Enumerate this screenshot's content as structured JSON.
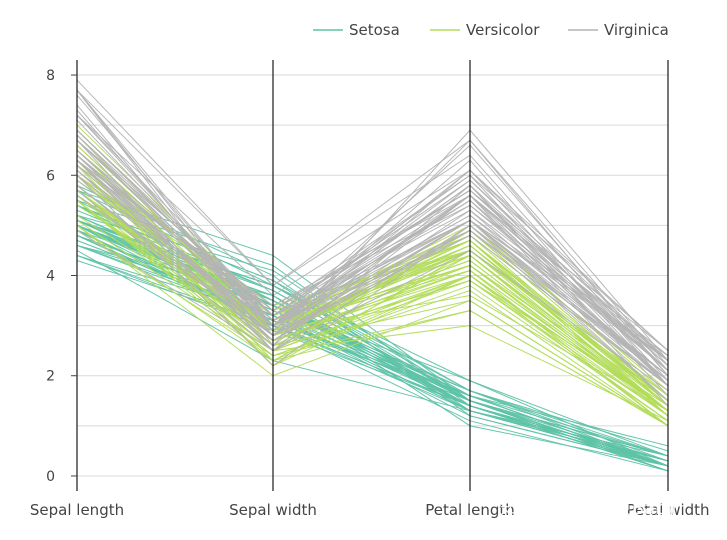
{
  "chart_data": {
    "type": "parallel_coordinates",
    "axes": [
      "Sepal length",
      "Sepal width",
      "Petal length",
      "Petal width"
    ],
    "ylim": [
      -0.3,
      8.3
    ],
    "yticks": [
      0,
      2,
      4,
      6,
      8
    ],
    "grid": true,
    "legend": "top-right",
    "series": [
      {
        "name": "Setosa",
        "color": "#5fc3a6",
        "values": [
          [
            5.1,
            3.5,
            1.4,
            0.2
          ],
          [
            4.9,
            3.0,
            1.4,
            0.2
          ],
          [
            4.7,
            3.2,
            1.3,
            0.2
          ],
          [
            4.6,
            3.1,
            1.5,
            0.2
          ],
          [
            5.0,
            3.6,
            1.4,
            0.2
          ],
          [
            5.4,
            3.9,
            1.7,
            0.4
          ],
          [
            4.6,
            3.4,
            1.4,
            0.3
          ],
          [
            5.0,
            3.4,
            1.5,
            0.2
          ],
          [
            4.4,
            2.9,
            1.4,
            0.2
          ],
          [
            4.9,
            3.1,
            1.5,
            0.1
          ],
          [
            5.4,
            3.7,
            1.5,
            0.2
          ],
          [
            4.8,
            3.4,
            1.6,
            0.2
          ],
          [
            4.8,
            3.0,
            1.4,
            0.1
          ],
          [
            4.3,
            3.0,
            1.1,
            0.1
          ],
          [
            5.8,
            4.0,
            1.2,
            0.2
          ],
          [
            5.7,
            4.4,
            1.5,
            0.4
          ],
          [
            5.4,
            3.9,
            1.3,
            0.4
          ],
          [
            5.1,
            3.5,
            1.4,
            0.3
          ],
          [
            5.7,
            3.8,
            1.7,
            0.3
          ],
          [
            5.1,
            3.8,
            1.5,
            0.3
          ],
          [
            5.4,
            3.4,
            1.7,
            0.2
          ],
          [
            5.1,
            3.7,
            1.5,
            0.4
          ],
          [
            4.6,
            3.6,
            1.0,
            0.2
          ],
          [
            5.1,
            3.3,
            1.7,
            0.5
          ],
          [
            4.8,
            3.4,
            1.9,
            0.2
          ],
          [
            5.0,
            3.0,
            1.6,
            0.2
          ],
          [
            5.0,
            3.4,
            1.6,
            0.4
          ],
          [
            5.2,
            3.5,
            1.5,
            0.2
          ],
          [
            5.2,
            3.4,
            1.4,
            0.2
          ],
          [
            4.7,
            3.2,
            1.6,
            0.2
          ],
          [
            4.8,
            3.1,
            1.6,
            0.2
          ],
          [
            5.4,
            3.4,
            1.5,
            0.4
          ],
          [
            5.2,
            4.1,
            1.5,
            0.1
          ],
          [
            5.5,
            4.2,
            1.4,
            0.2
          ],
          [
            4.9,
            3.1,
            1.5,
            0.2
          ],
          [
            5.0,
            3.2,
            1.2,
            0.2
          ],
          [
            5.5,
            3.5,
            1.3,
            0.2
          ],
          [
            4.9,
            3.6,
            1.4,
            0.1
          ],
          [
            4.4,
            3.0,
            1.3,
            0.2
          ],
          [
            5.1,
            3.4,
            1.5,
            0.2
          ],
          [
            5.0,
            3.5,
            1.3,
            0.3
          ],
          [
            4.5,
            2.3,
            1.3,
            0.3
          ],
          [
            4.4,
            3.2,
            1.3,
            0.2
          ],
          [
            5.0,
            3.5,
            1.6,
            0.6
          ],
          [
            5.1,
            3.8,
            1.9,
            0.4
          ],
          [
            4.8,
            3.0,
            1.4,
            0.3
          ],
          [
            5.1,
            3.8,
            1.6,
            0.2
          ],
          [
            4.6,
            3.2,
            1.4,
            0.2
          ],
          [
            5.3,
            3.7,
            1.5,
            0.2
          ],
          [
            5.0,
            3.3,
            1.4,
            0.2
          ]
        ]
      },
      {
        "name": "Versicolor",
        "color": "#b2dc5a",
        "values": [
          [
            7.0,
            3.2,
            4.7,
            1.4
          ],
          [
            6.4,
            3.2,
            4.5,
            1.5
          ],
          [
            6.9,
            3.1,
            4.9,
            1.5
          ],
          [
            5.5,
            2.3,
            4.0,
            1.3
          ],
          [
            6.5,
            2.8,
            4.6,
            1.5
          ],
          [
            5.7,
            2.8,
            4.5,
            1.3
          ],
          [
            6.3,
            3.3,
            4.7,
            1.6
          ],
          [
            4.9,
            2.4,
            3.3,
            1.0
          ],
          [
            6.6,
            2.9,
            4.6,
            1.3
          ],
          [
            5.2,
            2.7,
            3.9,
            1.4
          ],
          [
            5.0,
            2.0,
            3.5,
            1.0
          ],
          [
            5.9,
            3.0,
            4.2,
            1.5
          ],
          [
            6.0,
            2.2,
            4.0,
            1.0
          ],
          [
            6.1,
            2.9,
            4.7,
            1.4
          ],
          [
            5.6,
            2.9,
            3.6,
            1.3
          ],
          [
            6.7,
            3.1,
            4.4,
            1.4
          ],
          [
            5.6,
            3.0,
            4.5,
            1.5
          ],
          [
            5.8,
            2.7,
            4.1,
            1.0
          ],
          [
            6.2,
            2.2,
            4.5,
            1.5
          ],
          [
            5.6,
            2.5,
            3.9,
            1.1
          ],
          [
            5.9,
            3.2,
            4.8,
            1.8
          ],
          [
            6.1,
            2.8,
            4.0,
            1.3
          ],
          [
            6.3,
            2.5,
            4.9,
            1.5
          ],
          [
            6.1,
            2.8,
            4.7,
            1.2
          ],
          [
            6.4,
            2.9,
            4.3,
            1.3
          ],
          [
            6.6,
            3.0,
            4.4,
            1.4
          ],
          [
            6.8,
            2.8,
            4.8,
            1.4
          ],
          [
            6.7,
            3.0,
            5.0,
            1.7
          ],
          [
            6.0,
            2.9,
            4.5,
            1.5
          ],
          [
            5.7,
            2.6,
            3.5,
            1.0
          ],
          [
            5.5,
            2.4,
            3.8,
            1.1
          ],
          [
            5.5,
            2.4,
            3.7,
            1.0
          ],
          [
            5.8,
            2.7,
            3.9,
            1.2
          ],
          [
            6.0,
            2.7,
            5.1,
            1.6
          ],
          [
            5.4,
            3.0,
            4.5,
            1.5
          ],
          [
            6.0,
            3.4,
            4.5,
            1.6
          ],
          [
            6.7,
            3.1,
            4.7,
            1.5
          ],
          [
            6.3,
            2.3,
            4.4,
            1.3
          ],
          [
            5.6,
            3.0,
            4.1,
            1.3
          ],
          [
            5.5,
            2.5,
            4.0,
            1.3
          ],
          [
            5.5,
            2.6,
            4.4,
            1.2
          ],
          [
            6.1,
            3.0,
            4.6,
            1.4
          ],
          [
            5.8,
            2.6,
            4.0,
            1.2
          ],
          [
            5.0,
            2.3,
            3.3,
            1.0
          ],
          [
            5.6,
            2.7,
            4.2,
            1.3
          ],
          [
            5.7,
            3.0,
            4.2,
            1.2
          ],
          [
            5.7,
            2.9,
            4.2,
            1.3
          ],
          [
            6.2,
            2.9,
            4.3,
            1.3
          ],
          [
            5.1,
            2.5,
            3.0,
            1.1
          ],
          [
            5.7,
            2.8,
            4.1,
            1.3
          ]
        ]
      },
      {
        "name": "Virginica",
        "color": "#b4b4b4",
        "values": [
          [
            6.3,
            3.3,
            6.0,
            2.5
          ],
          [
            5.8,
            2.7,
            5.1,
            1.9
          ],
          [
            7.1,
            3.0,
            5.9,
            2.1
          ],
          [
            6.3,
            2.9,
            5.6,
            1.8
          ],
          [
            6.5,
            3.0,
            5.8,
            2.2
          ],
          [
            7.6,
            3.0,
            6.6,
            2.1
          ],
          [
            4.9,
            2.5,
            4.5,
            1.7
          ],
          [
            7.3,
            2.9,
            6.3,
            1.8
          ],
          [
            6.7,
            2.5,
            5.8,
            1.8
          ],
          [
            7.2,
            3.6,
            6.1,
            2.5
          ],
          [
            6.5,
            3.2,
            5.1,
            2.0
          ],
          [
            6.4,
            2.7,
            5.3,
            1.9
          ],
          [
            6.8,
            3.0,
            5.5,
            2.1
          ],
          [
            5.7,
            2.5,
            5.0,
            2.0
          ],
          [
            5.8,
            2.8,
            5.1,
            2.4
          ],
          [
            6.4,
            3.2,
            5.3,
            2.3
          ],
          [
            6.5,
            3.0,
            5.5,
            1.8
          ],
          [
            7.7,
            3.8,
            6.7,
            2.2
          ],
          [
            7.7,
            2.6,
            6.9,
            2.3
          ],
          [
            6.0,
            2.2,
            5.0,
            1.5
          ],
          [
            6.9,
            3.2,
            5.7,
            2.3
          ],
          [
            5.6,
            2.8,
            4.9,
            2.0
          ],
          [
            7.7,
            2.8,
            6.7,
            2.0
          ],
          [
            6.3,
            2.7,
            4.9,
            1.8
          ],
          [
            6.7,
            3.3,
            5.7,
            2.1
          ],
          [
            7.2,
            3.2,
            6.0,
            1.8
          ],
          [
            6.2,
            2.8,
            4.8,
            1.8
          ],
          [
            6.1,
            3.0,
            4.9,
            1.8
          ],
          [
            6.4,
            2.8,
            5.6,
            2.1
          ],
          [
            7.2,
            3.0,
            5.8,
            1.6
          ],
          [
            7.4,
            2.8,
            6.1,
            1.9
          ],
          [
            7.9,
            3.8,
            6.4,
            2.0
          ],
          [
            6.4,
            2.8,
            5.6,
            2.2
          ],
          [
            6.3,
            2.8,
            5.1,
            1.5
          ],
          [
            6.1,
            2.6,
            5.6,
            1.4
          ],
          [
            7.7,
            3.0,
            6.1,
            2.3
          ],
          [
            6.3,
            3.4,
            5.6,
            2.4
          ],
          [
            6.4,
            3.1,
            5.5,
            1.8
          ],
          [
            6.0,
            3.0,
            4.8,
            1.8
          ],
          [
            6.9,
            3.1,
            5.4,
            2.1
          ],
          [
            6.7,
            3.1,
            5.6,
            2.4
          ],
          [
            6.9,
            3.1,
            5.1,
            2.3
          ],
          [
            5.8,
            2.7,
            5.1,
            1.9
          ],
          [
            6.8,
            3.2,
            5.9,
            2.3
          ],
          [
            6.7,
            3.3,
            5.7,
            2.5
          ],
          [
            6.7,
            3.0,
            5.2,
            2.3
          ],
          [
            6.3,
            2.5,
            5.0,
            1.9
          ],
          [
            6.5,
            3.0,
            5.2,
            2.0
          ],
          [
            6.2,
            3.4,
            5.4,
            2.3
          ],
          [
            5.9,
            3.0,
            5.1,
            1.8
          ]
        ]
      }
    ]
  },
  "watermark": "知乎 @小狗贝贝Baby"
}
